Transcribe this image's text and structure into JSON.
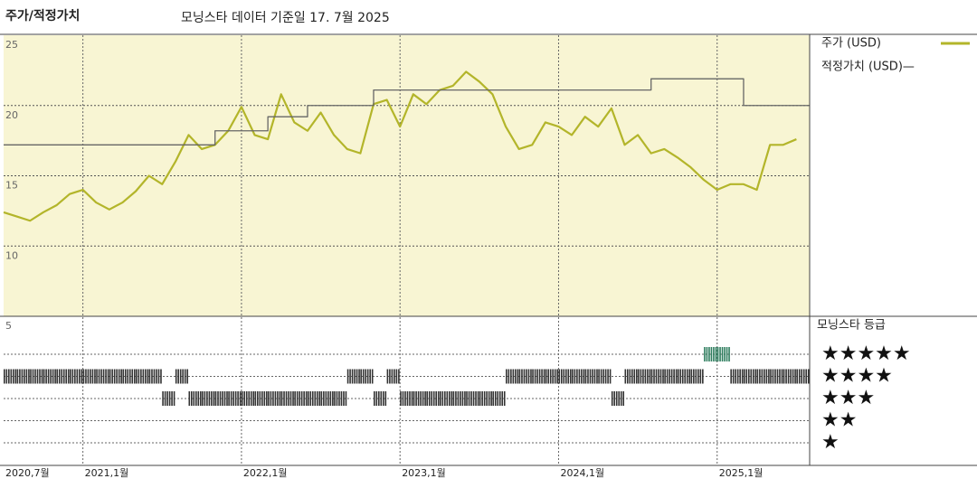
{
  "chart_data": [
    {
      "type": "line",
      "title": "주가/적정가치",
      "subtitle": "모닝스타 데이터 기준일 17. 7월 2025",
      "x": [
        "2020-07",
        "2020-08",
        "2020-09",
        "2020-10",
        "2020-11",
        "2020-12",
        "2021-01",
        "2021-02",
        "2021-03",
        "2021-04",
        "2021-05",
        "2021-06",
        "2021-07",
        "2021-08",
        "2021-09",
        "2021-10",
        "2021-11",
        "2021-12",
        "2022-01",
        "2022-02",
        "2022-03",
        "2022-04",
        "2022-05",
        "2022-06",
        "2022-07",
        "2022-08",
        "2022-09",
        "2022-10",
        "2022-11",
        "2022-12",
        "2023-01",
        "2023-02",
        "2023-03",
        "2023-04",
        "2023-05",
        "2023-06",
        "2023-07",
        "2023-08",
        "2023-09",
        "2023-10",
        "2023-11",
        "2023-12",
        "2024-01",
        "2024-02",
        "2024-03",
        "2024-04",
        "2024-05",
        "2024-06",
        "2024-07",
        "2024-08",
        "2024-09",
        "2024-10",
        "2024-11",
        "2024-12",
        "2025-01",
        "2025-02",
        "2025-03",
        "2025-04",
        "2025-05",
        "2025-06",
        "2025-07"
      ],
      "series": [
        {
          "name": "주가 (USD)",
          "color": "#b3b52a",
          "style": "line",
          "values": [
            12.4,
            12.1,
            11.8,
            12.4,
            12.9,
            13.7,
            14.0,
            13.1,
            12.6,
            13.1,
            13.9,
            15.0,
            14.4,
            16.0,
            17.9,
            16.9,
            17.2,
            18.2,
            19.9,
            17.9,
            17.6,
            20.8,
            18.8,
            18.2,
            19.5,
            17.9,
            16.9,
            16.6,
            20.1,
            20.4,
            18.5,
            20.8,
            20.1,
            21.1,
            21.4,
            22.4,
            21.7,
            20.8,
            18.5,
            16.9,
            17.2,
            18.8,
            18.5,
            17.9,
            19.2,
            18.5,
            19.8,
            17.2,
            17.9,
            16.6,
            16.9,
            16.3,
            15.6,
            14.7,
            14.0,
            14.4,
            14.4,
            14.0,
            17.2,
            17.2,
            17.6
          ]
        },
        {
          "name": "적정가치 (USD)—",
          "color": "#666666",
          "style": "step",
          "values": [
            17.2,
            17.2,
            17.2,
            17.2,
            17.2,
            17.2,
            17.2,
            17.2,
            17.2,
            17.2,
            17.2,
            17.2,
            17.2,
            17.2,
            17.2,
            17.2,
            18.2,
            18.2,
            18.2,
            18.2,
            19.2,
            19.2,
            19.2,
            20.0,
            20.0,
            20.0,
            20.0,
            20.0,
            21.1,
            21.1,
            21.1,
            21.1,
            21.1,
            21.1,
            21.1,
            21.1,
            21.1,
            21.1,
            21.1,
            21.1,
            21.1,
            21.1,
            21.1,
            21.1,
            21.1,
            21.1,
            21.1,
            21.1,
            21.1,
            21.9,
            21.9,
            21.9,
            21.9,
            21.9,
            21.9,
            21.9,
            20.0,
            20.0,
            20.0,
            20.0,
            20.0
          ]
        }
      ],
      "xlim": [
        "2020-07",
        "2025-07"
      ],
      "xticks": [
        {
          "value": "2020-07",
          "label": "2020,7월"
        },
        {
          "value": "2021-01",
          "label": "2021,1월"
        },
        {
          "value": "2022-01",
          "label": "2022,1월"
        },
        {
          "value": "2023-01",
          "label": "2023,1월"
        },
        {
          "value": "2024-01",
          "label": "2024,1월"
        },
        {
          "value": "2025-01",
          "label": "2025,1월"
        }
      ],
      "ylim": [
        5,
        25
      ],
      "yticks": [
        5,
        10,
        15,
        20,
        25
      ],
      "grid": true,
      "background": "#f8f5d3"
    },
    {
      "type": "rating",
      "title": "모닝스타 등급",
      "color": "#333333",
      "highlight_color": "#2e7d5e",
      "x": [
        "2020-07",
        "2020-08",
        "2020-09",
        "2020-10",
        "2020-11",
        "2020-12",
        "2021-01",
        "2021-02",
        "2021-03",
        "2021-04",
        "2021-05",
        "2021-06",
        "2021-07",
        "2021-08",
        "2021-09",
        "2021-10",
        "2021-11",
        "2021-12",
        "2022-01",
        "2022-02",
        "2022-03",
        "2022-04",
        "2022-05",
        "2022-06",
        "2022-07",
        "2022-08",
        "2022-09",
        "2022-10",
        "2022-11",
        "2022-12",
        "2023-01",
        "2023-02",
        "2023-03",
        "2023-04",
        "2023-05",
        "2023-06",
        "2023-07",
        "2023-08",
        "2023-09",
        "2023-10",
        "2023-11",
        "2023-12",
        "2024-01",
        "2024-02",
        "2024-03",
        "2024-04",
        "2024-05",
        "2024-06",
        "2024-07",
        "2024-08",
        "2024-09",
        "2024-10",
        "2024-11",
        "2024-12",
        "2025-01",
        "2025-02",
        "2025-03",
        "2025-04",
        "2025-05",
        "2025-06",
        "2025-07"
      ],
      "values": [
        4,
        4,
        4,
        4,
        4,
        4,
        4,
        4,
        4,
        4,
        4,
        4,
        3,
        4,
        3,
        3,
        3,
        3,
        3,
        3,
        3,
        3,
        3,
        3,
        3,
        3,
        4,
        4,
        3,
        4,
        3,
        3,
        3,
        3,
        3,
        3,
        3,
        3,
        4,
        4,
        4,
        4,
        4,
        4,
        4,
        4,
        3,
        4,
        4,
        4,
        4,
        4,
        4,
        5,
        5,
        4,
        4,
        4,
        4,
        4,
        4
      ],
      "ylim": [
        1,
        5
      ],
      "yticks": [
        {
          "value": 5,
          "label": "★★★★★"
        },
        {
          "value": 4,
          "label": "★★★★"
        },
        {
          "value": 3,
          "label": "★★★"
        },
        {
          "value": 2,
          "label": "★★"
        },
        {
          "value": 1,
          "label": "★"
        }
      ]
    }
  ]
}
